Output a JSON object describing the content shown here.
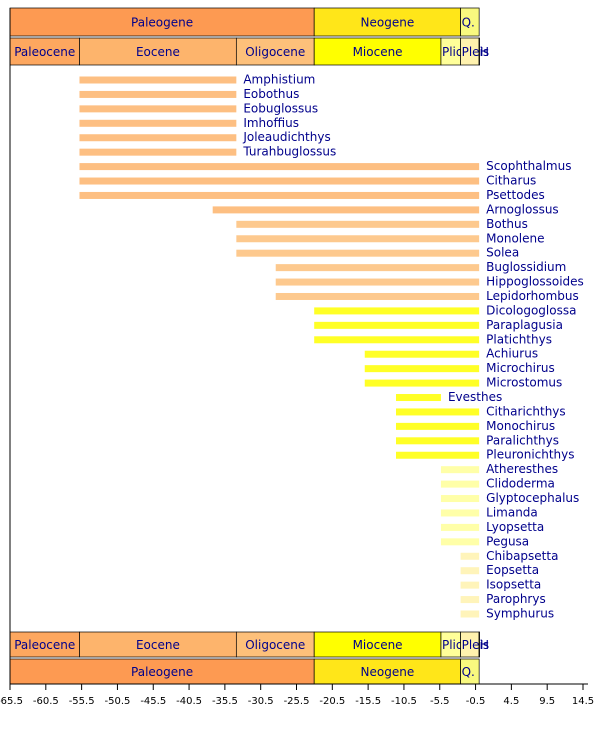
{
  "chart_data": {
    "type": "timeline",
    "xlim": [
      -65.5,
      14.5
    ],
    "xticks": [
      -65.5,
      -60.5,
      -55.5,
      -50.5,
      -45.5,
      -40.5,
      -35.5,
      -30.5,
      -25.5,
      -20.5,
      -15.5,
      -10.5,
      -5.5,
      -0.5,
      4.5,
      9.5,
      14.5
    ],
    "periods": [
      {
        "name": "Paleogene",
        "start": -65.5,
        "end": -23.03,
        "color": "#fd9a52"
      },
      {
        "name": "Neogene",
        "start": -23.03,
        "end": -2.588,
        "color": "#ffe619"
      },
      {
        "name": "Q.",
        "start": -2.588,
        "end": 0,
        "color": "#f9f97f"
      }
    ],
    "epochs": [
      {
        "name": "Paleocene",
        "start": -65.5,
        "end": -55.8,
        "color": "#fda75f"
      },
      {
        "name": "Eocene",
        "start": -55.8,
        "end": -33.9,
        "color": "#fdb46c"
      },
      {
        "name": "Oligocene",
        "start": -33.9,
        "end": -23.03,
        "color": "#fdc07a"
      },
      {
        "name": "Miocene",
        "start": -23.03,
        "end": -5.332,
        "color": "#ffff00"
      },
      {
        "name": "Plio.",
        "start": -5.332,
        "end": -2.588,
        "color": "#ffff99"
      },
      {
        "name": "Pleist.",
        "start": -2.588,
        "end": -0.0117,
        "color": "#fff2ae"
      },
      {
        "name": "H.",
        "start": -0.0117,
        "end": 0,
        "color": "#fef2e0"
      }
    ],
    "taxa": [
      {
        "name": "Amphistium",
        "start": -55.8,
        "end": -33.9,
        "color": "#fdb46c"
      },
      {
        "name": "Eobothus",
        "start": -55.8,
        "end": -33.9,
        "color": "#fdb46c"
      },
      {
        "name": "Eobuglossus",
        "start": -55.8,
        "end": -33.9,
        "color": "#fdb46c"
      },
      {
        "name": "Imhoffius",
        "start": -55.8,
        "end": -33.9,
        "color": "#fdb46c"
      },
      {
        "name": "Joleaudichthys",
        "start": -55.8,
        "end": -33.9,
        "color": "#fdb46c"
      },
      {
        "name": "Turahbuglossus",
        "start": -55.8,
        "end": -33.9,
        "color": "#fdb46c"
      },
      {
        "name": "Scophthalmus",
        "start": -55.8,
        "end": 0,
        "color": "#fdb46c"
      },
      {
        "name": "Citharus",
        "start": -55.8,
        "end": 0,
        "color": "#fdb46c"
      },
      {
        "name": "Psettodes",
        "start": -55.8,
        "end": 0,
        "color": "#fdb46c"
      },
      {
        "name": "Arnoglossus",
        "start": -37.2,
        "end": 0,
        "color": "#fdb46c"
      },
      {
        "name": "Bothus",
        "start": -33.9,
        "end": 0,
        "color": "#fdc07a"
      },
      {
        "name": "Monolene",
        "start": -33.9,
        "end": 0,
        "color": "#fdc07a"
      },
      {
        "name": "Solea",
        "start": -33.9,
        "end": 0,
        "color": "#fdc07a"
      },
      {
        "name": "Buglossidium",
        "start": -28.4,
        "end": 0,
        "color": "#fdc07a"
      },
      {
        "name": "Hippoglossoides",
        "start": -28.4,
        "end": 0,
        "color": "#fdc07a"
      },
      {
        "name": "Lepidorhombus",
        "start": -28.4,
        "end": 0,
        "color": "#fdc07a"
      },
      {
        "name": "Dicologoglossa",
        "start": -23.03,
        "end": 0,
        "color": "#ffff00"
      },
      {
        "name": "Paraplagusia",
        "start": -23.03,
        "end": 0,
        "color": "#ffff00"
      },
      {
        "name": "Platichthys",
        "start": -23.03,
        "end": 0,
        "color": "#ffff00"
      },
      {
        "name": "Achiurus",
        "start": -15.97,
        "end": 0,
        "color": "#ffff00"
      },
      {
        "name": "Microchirus",
        "start": -15.97,
        "end": 0,
        "color": "#ffff00"
      },
      {
        "name": "Microstomus",
        "start": -15.97,
        "end": 0,
        "color": "#ffff00"
      },
      {
        "name": "Evesthes",
        "start": -11.608,
        "end": -5.332,
        "color": "#ffff00"
      },
      {
        "name": "Citharichthys",
        "start": -11.608,
        "end": 0,
        "color": "#ffff00"
      },
      {
        "name": "Monochirus",
        "start": -11.608,
        "end": 0,
        "color": "#ffff00"
      },
      {
        "name": "Paralichthys",
        "start": -11.608,
        "end": 0,
        "color": "#ffff00"
      },
      {
        "name": "Pleuronichthys",
        "start": -11.608,
        "end": 0,
        "color": "#ffff00"
      },
      {
        "name": "Atheresthes",
        "start": -5.332,
        "end": 0,
        "color": "#ffff99"
      },
      {
        "name": "Clidoderma",
        "start": -5.332,
        "end": 0,
        "color": "#ffff99"
      },
      {
        "name": "Glyptocephalus",
        "start": -5.332,
        "end": 0,
        "color": "#ffff99"
      },
      {
        "name": "Limanda",
        "start": -5.332,
        "end": 0,
        "color": "#ffff99"
      },
      {
        "name": "Lyopsetta",
        "start": -5.332,
        "end": 0,
        "color": "#ffff99"
      },
      {
        "name": "Pegusa",
        "start": -5.332,
        "end": 0,
        "color": "#ffff99"
      },
      {
        "name": "Chibapsetta",
        "start": -2.588,
        "end": 0,
        "color": "#fff2ae"
      },
      {
        "name": "Eopsetta",
        "start": -2.588,
        "end": 0,
        "color": "#fff2ae"
      },
      {
        "name": "Isopsetta",
        "start": -2.588,
        "end": 0,
        "color": "#fff2ae"
      },
      {
        "name": "Parophrys",
        "start": -2.588,
        "end": 0,
        "color": "#fff2ae"
      },
      {
        "name": "Symphurus",
        "start": -2.588,
        "end": 0,
        "color": "#fff2ae"
      }
    ]
  }
}
